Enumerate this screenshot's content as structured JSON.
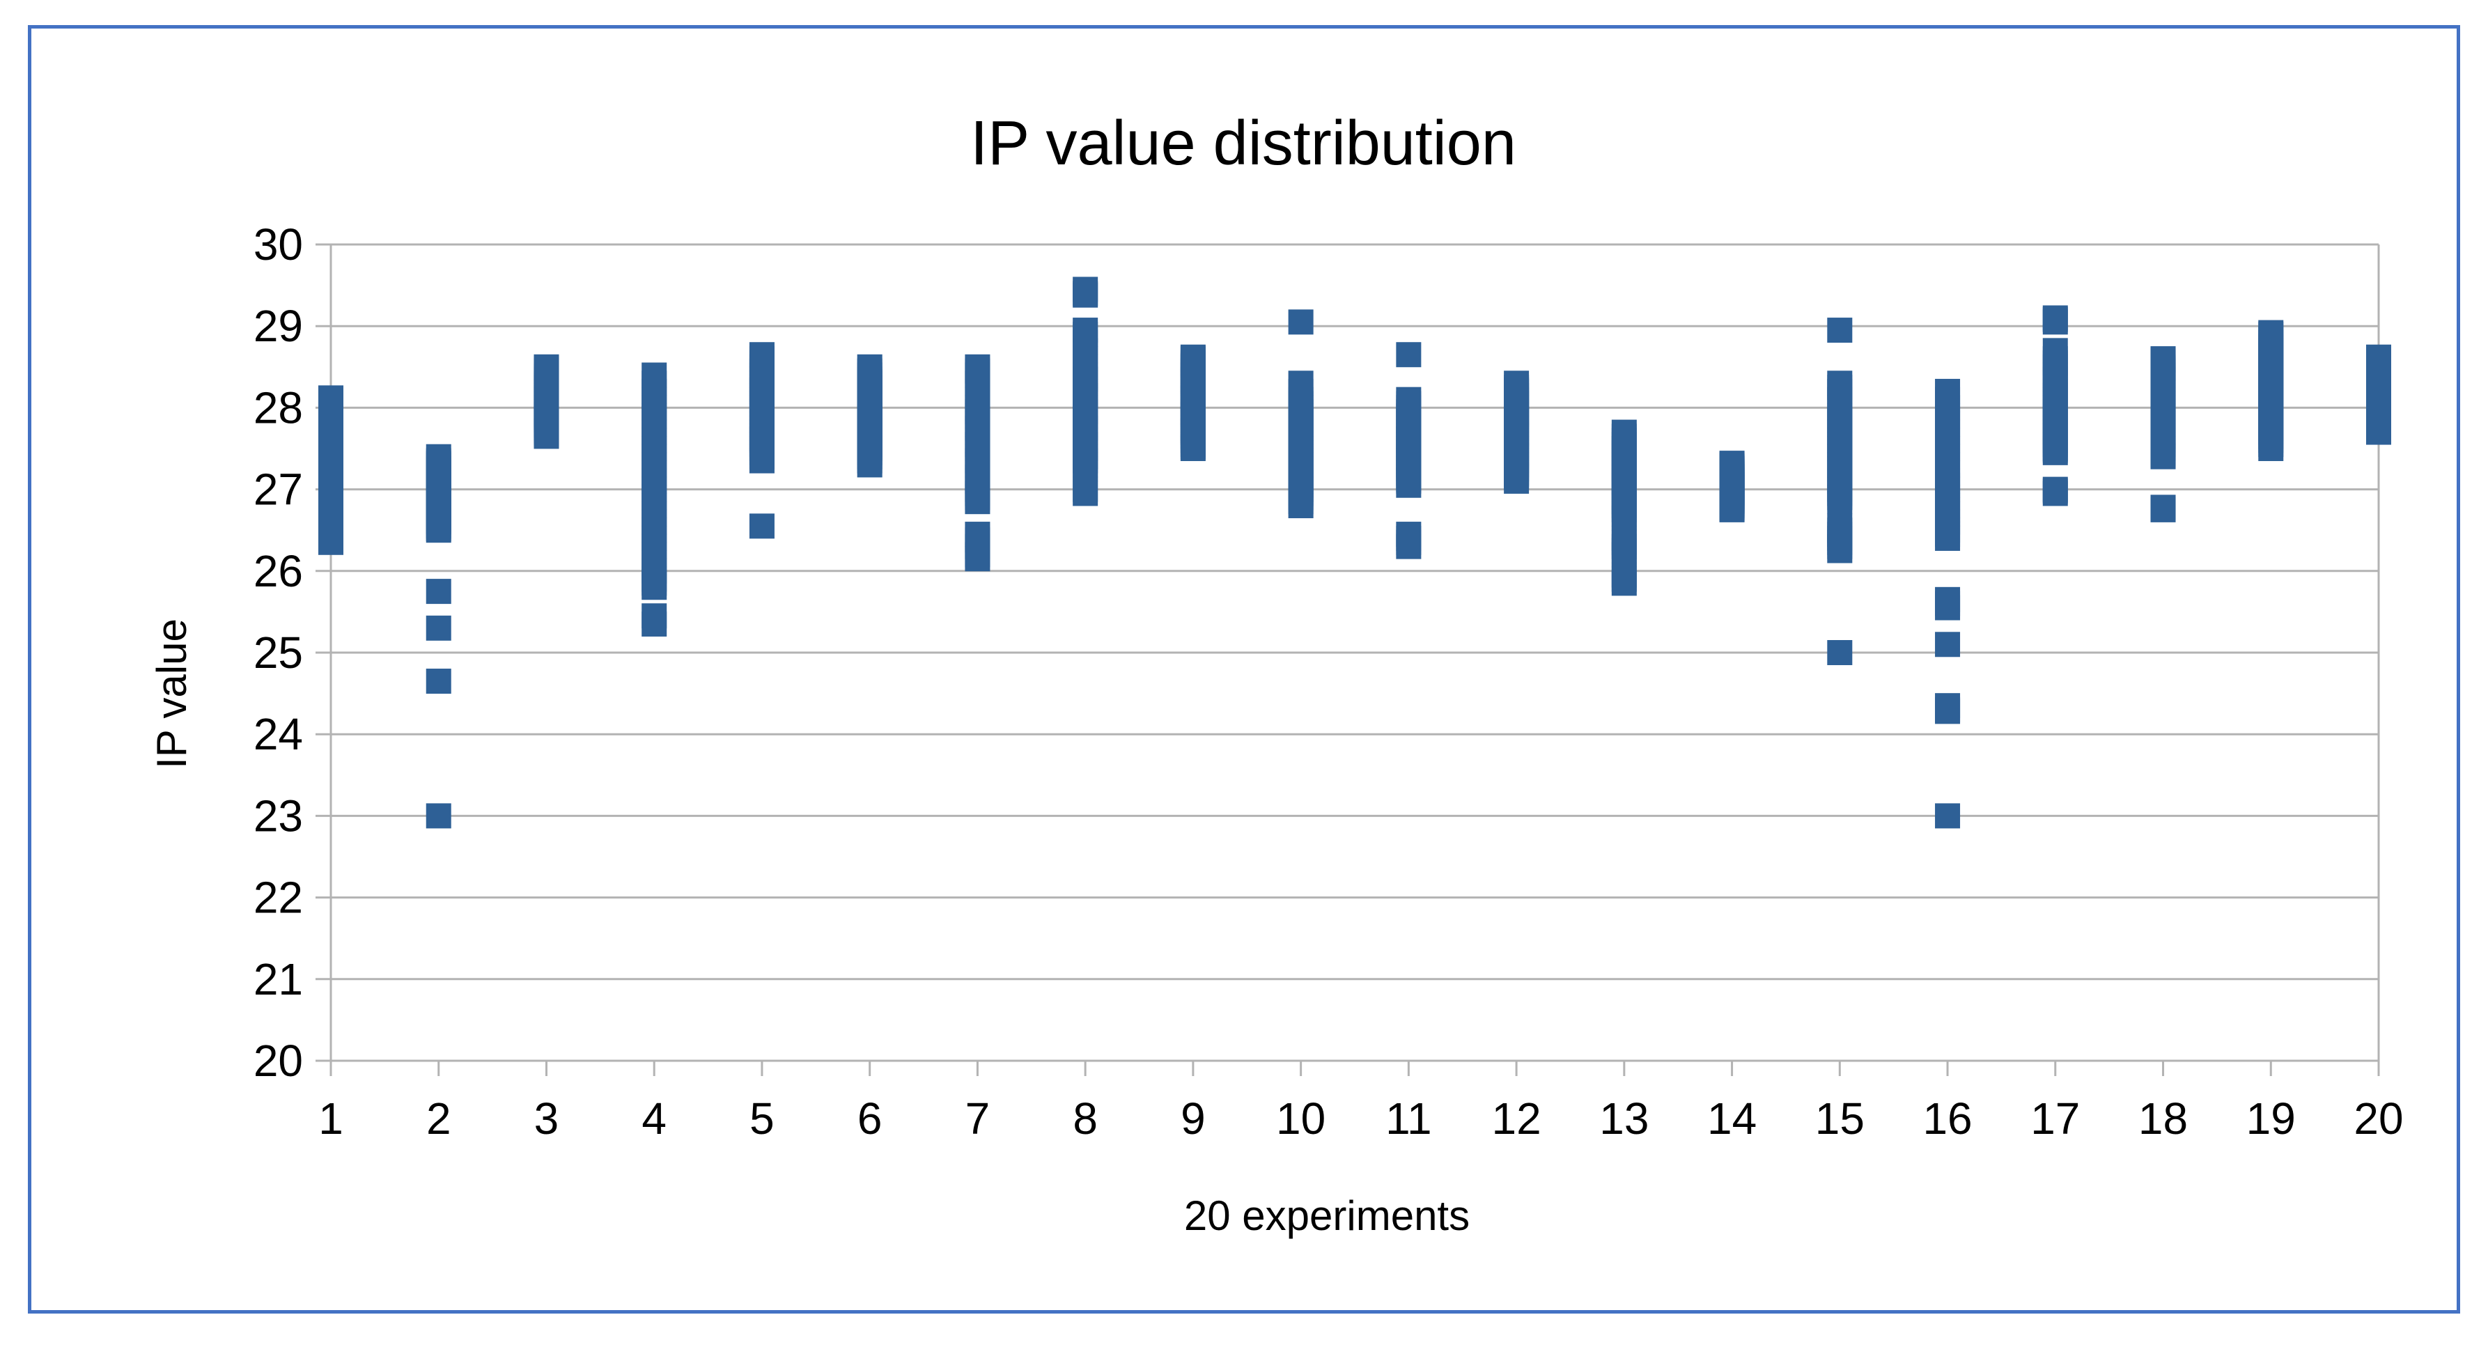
{
  "chart_data": {
    "type": "scatter",
    "title": "IP value distribution",
    "xlabel": "20 experiments",
    "ylabel": "IP value",
    "xlim": [
      1,
      20
    ],
    "ylim": [
      20,
      30
    ],
    "x_ticks": [
      "1",
      "2",
      "3",
      "4",
      "5",
      "6",
      "7",
      "8",
      "9",
      "10",
      "11",
      "12",
      "13",
      "14",
      "15",
      "16",
      "17",
      "18",
      "19",
      "20"
    ],
    "y_ticks": [
      "20",
      "21",
      "22",
      "23",
      "24",
      "25",
      "26",
      "27",
      "28",
      "29",
      "30"
    ],
    "grid": true,
    "legend": "none",
    "marker": "square",
    "color": "#2e6096",
    "series": [
      {
        "x": [
          1,
          1,
          1,
          1,
          1,
          1,
          1,
          1,
          1,
          1,
          1,
          1,
          1,
          1,
          1,
          1,
          1,
          1,
          1,
          1,
          1,
          1,
          1,
          1,
          1,
          1,
          1,
          1,
          1,
          1,
          1,
          1,
          1,
          1,
          1,
          1,
          1,
          1,
          1,
          1,
          2,
          2,
          2,
          2,
          2,
          2,
          2,
          2,
          2,
          2,
          2,
          2,
          2,
          2,
          2,
          2,
          2,
          2,
          2,
          2,
          2,
          2,
          2,
          2,
          2,
          2,
          2,
          2,
          2,
          2,
          3,
          3,
          3,
          3,
          3,
          3,
          3,
          3,
          3,
          3,
          3,
          3,
          3,
          3,
          3,
          3,
          3,
          3,
          3,
          3,
          3,
          3,
          3,
          3,
          3,
          3,
          3,
          3,
          3,
          3,
          4,
          4,
          4,
          4,
          4,
          4,
          4,
          4,
          4,
          4,
          4,
          4,
          4,
          4,
          4,
          4,
          4,
          4,
          4,
          4,
          4,
          4,
          4,
          4,
          4,
          4,
          4,
          4,
          4,
          4,
          5,
          5,
          5,
          5,
          5,
          5,
          5,
          5,
          5,
          5,
          5,
          5,
          5,
          5,
          5,
          5,
          5,
          5,
          5,
          5,
          5,
          5,
          5,
          5,
          5,
          5,
          5,
          5,
          5,
          5,
          6,
          6,
          6,
          6,
          6,
          6,
          6,
          6,
          6,
          6,
          6,
          6,
          6,
          6,
          6,
          6,
          6,
          6,
          6,
          6,
          6,
          6,
          6,
          6,
          6,
          6,
          6,
          6,
          6,
          6,
          7,
          7,
          7,
          7,
          7,
          7,
          7,
          7,
          7,
          7,
          7,
          7,
          7,
          7,
          7,
          7,
          7,
          7,
          7,
          7,
          7,
          7,
          7,
          7,
          7,
          7,
          7,
          7,
          7,
          7,
          8,
          8,
          8,
          8,
          8,
          8,
          8,
          8,
          8,
          8,
          8,
          8,
          8,
          8,
          8,
          8,
          8,
          8,
          8,
          8,
          8,
          8,
          8,
          8,
          8,
          8,
          8,
          8,
          8,
          8,
          9,
          9,
          9,
          9,
          9,
          9,
          9,
          9,
          9,
          9,
          9,
          9,
          9,
          9,
          9,
          9,
          9,
          9,
          9,
          9,
          9,
          9,
          9,
          9,
          9,
          9,
          9,
          9,
          9,
          9,
          10,
          10,
          10,
          10,
          10,
          10,
          10,
          10,
          10,
          10,
          10,
          10,
          10,
          10,
          10,
          10,
          10,
          10,
          10,
          10,
          10,
          10,
          10,
          10,
          10,
          10,
          10,
          10,
          10,
          10,
          11,
          11,
          11,
          11,
          11,
          11,
          11,
          11,
          11,
          11,
          11,
          11,
          11,
          11,
          11,
          11,
          11,
          11,
          11,
          11,
          11,
          11,
          11,
          11,
          11,
          11,
          11,
          11,
          11,
          11,
          12,
          12,
          12,
          12,
          12,
          12,
          12,
          12,
          12,
          12,
          12,
          12,
          12,
          12,
          12,
          12,
          12,
          12,
          12,
          12,
          12,
          12,
          12,
          12,
          12,
          12,
          12,
          12,
          12,
          12,
          13,
          13,
          13,
          13,
          13,
          13,
          13,
          13,
          13,
          13,
          13,
          13,
          13,
          13,
          13,
          13,
          13,
          13,
          13,
          13,
          13,
          13,
          13,
          13,
          13,
          13,
          13,
          13,
          13,
          13,
          14,
          14,
          14,
          14,
          14,
          14,
          14,
          14,
          14,
          14,
          14,
          14,
          14,
          14,
          14,
          14,
          14,
          14,
          14,
          14,
          14,
          14,
          14,
          14,
          14,
          14,
          14,
          14,
          14,
          14,
          15,
          15,
          15,
          15,
          15,
          15,
          15,
          15,
          15,
          15,
          15,
          15,
          15,
          15,
          15,
          15,
          15,
          15,
          15,
          15,
          15,
          15,
          15,
          15,
          15,
          15,
          15,
          15,
          15,
          15,
          16,
          16,
          16,
          16,
          16,
          16,
          16,
          16,
          16,
          16,
          16,
          16,
          16,
          16,
          16,
          16,
          16,
          16,
          16,
          16,
          16,
          16,
          16,
          16,
          16,
          16,
          16,
          16,
          16,
          16,
          17,
          17,
          17,
          17,
          17,
          17,
          17,
          17,
          17,
          17,
          17,
          17,
          17,
          17,
          17,
          17,
          17,
          17,
          17,
          17,
          17,
          17,
          17,
          17,
          17,
          17,
          17,
          17,
          17,
          17,
          18,
          18,
          18,
          18,
          18,
          18,
          18,
          18,
          18,
          18,
          18,
          18,
          18,
          18,
          18,
          18,
          18,
          18,
          18,
          18,
          18,
          18,
          18,
          18,
          18,
          18,
          18,
          18,
          18,
          18,
          19,
          19,
          19,
          19,
          19,
          19,
          19,
          19,
          19,
          19,
          19,
          19,
          19,
          19,
          19,
          19,
          19,
          19,
          19,
          19,
          19,
          19,
          19,
          19,
          19,
          19,
          19,
          19,
          19,
          19,
          20,
          20,
          20,
          20,
          20,
          20,
          20,
          20,
          20,
          20,
          20,
          20,
          20,
          20,
          20,
          20,
          20,
          20,
          20,
          20,
          20,
          20,
          20,
          20,
          20,
          20,
          20,
          20,
          20,
          20
        ],
        "y": [
          26.35,
          26.4,
          26.5,
          26.55,
          26.6,
          26.7,
          26.85,
          26.9,
          27.0,
          27.05,
          27.1,
          27.2,
          27.25,
          27.3,
          27.35,
          27.4,
          27.45,
          27.5,
          27.55,
          27.6,
          27.65,
          27.7,
          27.75,
          27.8,
          27.85,
          27.9,
          27.95,
          28.0,
          28.05,
          28.1,
          28.12,
          26.45,
          26.65,
          26.95,
          27.15,
          27.42,
          27.58,
          27.78,
          27.98,
          28.08,
          23.0,
          24.65,
          25.3,
          25.75,
          26.5,
          26.55,
          26.6,
          26.65,
          26.7,
          26.75,
          26.8,
          26.85,
          26.9,
          26.95,
          27.0,
          27.05,
          27.1,
          27.15,
          27.2,
          27.25,
          27.3,
          27.35,
          27.4,
          26.52,
          26.62,
          26.72,
          26.82,
          26.98,
          27.12,
          27.32,
          27.65,
          27.7,
          27.75,
          27.8,
          27.85,
          27.9,
          27.95,
          28.0,
          28.05,
          28.1,
          28.15,
          28.2,
          28.25,
          28.3,
          28.35,
          28.4,
          28.45,
          28.5,
          27.68,
          27.78,
          27.88,
          27.98,
          28.08,
          28.18,
          28.28,
          28.38,
          28.48,
          27.72,
          27.92,
          28.12,
          25.35,
          25.45,
          25.8,
          25.9,
          26.0,
          26.2,
          26.4,
          26.6,
          26.8,
          27.0,
          27.2,
          27.4,
          27.6,
          27.8,
          28.0,
          28.2,
          28.4,
          25.85,
          26.1,
          26.3,
          26.5,
          26.7,
          26.9,
          27.1,
          27.3,
          27.5,
          27.7,
          27.9,
          28.1,
          28.3,
          26.55,
          27.35,
          27.45,
          27.55,
          27.65,
          27.75,
          27.85,
          27.95,
          28.05,
          28.15,
          28.25,
          28.35,
          28.45,
          28.55,
          28.65,
          27.4,
          27.5,
          27.6,
          27.7,
          27.8,
          27.9,
          28.0,
          28.1,
          28.2,
          28.3,
          28.4,
          28.5,
          28.6,
          27.62,
          28.22,
          27.3,
          27.4,
          27.5,
          27.6,
          27.7,
          27.8,
          27.9,
          28.0,
          28.1,
          28.2,
          28.3,
          28.4,
          28.5,
          27.35,
          27.45,
          27.55,
          27.65,
          27.75,
          27.85,
          27.95,
          28.05,
          28.15,
          28.25,
          28.35,
          28.45,
          27.52,
          27.72,
          27.92,
          28.12,
          28.32,
          26.15,
          26.3,
          26.45,
          26.85,
          27.0,
          27.2,
          27.4,
          27.6,
          27.8,
          28.0,
          28.2,
          28.4,
          28.5,
          26.2,
          26.38,
          26.9,
          27.1,
          27.3,
          27.5,
          27.7,
          27.9,
          28.1,
          28.3,
          28.45,
          26.95,
          27.15,
          27.35,
          27.55,
          27.75,
          27.95,
          26.95,
          27.0,
          27.25,
          27.4,
          27.6,
          27.8,
          28.0,
          28.2,
          28.4,
          28.6,
          28.8,
          28.95,
          29.4,
          29.45,
          27.3,
          27.5,
          27.7,
          27.9,
          28.1,
          28.3,
          28.5,
          28.7,
          28.9,
          29.38,
          27.35,
          27.55,
          27.75,
          27.95,
          28.15,
          28.35,
          27.5,
          27.6,
          27.7,
          27.8,
          27.9,
          28.0,
          28.1,
          28.2,
          28.3,
          28.4,
          28.5,
          28.6,
          27.55,
          27.65,
          27.75,
          27.85,
          27.95,
          28.05,
          28.15,
          28.25,
          28.35,
          28.45,
          28.55,
          28.62,
          27.52,
          27.72,
          27.92,
          28.12,
          28.32,
          28.52,
          26.8,
          26.9,
          27.0,
          27.1,
          27.2,
          27.3,
          27.4,
          27.5,
          27.6,
          27.7,
          27.8,
          27.9,
          28.0,
          28.1,
          28.2,
          28.3,
          29.05,
          26.85,
          26.95,
          27.05,
          27.15,
          27.25,
          27.35,
          27.45,
          27.55,
          27.65,
          27.75,
          27.85,
          27.95,
          28.05,
          26.3,
          26.4,
          26.45,
          27.05,
          27.15,
          27.25,
          27.35,
          27.45,
          27.55,
          27.65,
          27.75,
          27.85,
          27.95,
          28.05,
          28.1,
          28.65,
          26.35,
          27.1,
          27.2,
          27.3,
          27.4,
          27.5,
          27.6,
          27.7,
          27.8,
          27.9,
          28.0,
          27.12,
          27.38,
          27.62,
          27.1,
          27.2,
          27.3,
          27.4,
          27.5,
          27.6,
          27.7,
          27.8,
          27.9,
          28.0,
          28.1,
          28.2,
          28.3,
          27.15,
          27.25,
          27.35,
          27.45,
          27.55,
          27.65,
          27.75,
          27.85,
          27.95,
          28.05,
          28.15,
          28.25,
          27.18,
          27.42,
          27.68,
          27.92,
          28.22,
          25.85,
          25.95,
          26.2,
          26.3,
          26.4,
          26.65,
          26.75,
          26.85,
          27.0,
          27.1,
          27.2,
          27.3,
          27.4,
          27.5,
          27.6,
          27.7,
          25.9,
          26.25,
          26.35,
          26.7,
          26.8,
          27.05,
          27.15,
          27.25,
          27.35,
          27.45,
          27.55,
          27.65,
          26.9,
          27.08,
          26.75,
          26.8,
          26.85,
          26.9,
          26.95,
          27.0,
          27.05,
          27.1,
          27.15,
          27.2,
          27.25,
          27.3,
          26.78,
          26.82,
          26.88,
          26.92,
          26.98,
          27.02,
          27.08,
          27.12,
          27.18,
          27.22,
          27.28,
          26.76,
          26.86,
          26.96,
          27.06,
          27.16,
          27.26,
          27.32,
          25.0,
          26.25,
          26.35,
          26.45,
          26.55,
          26.85,
          27.0,
          27.2,
          27.4,
          27.6,
          27.8,
          28.0,
          28.2,
          28.3,
          28.95,
          26.3,
          26.4,
          26.5,
          26.9,
          27.1,
          27.3,
          27.5,
          27.7,
          27.9,
          28.1,
          28.25,
          26.95,
          27.25,
          27.55,
          27.85,
          23.0,
          24.3,
          24.35,
          25.1,
          25.55,
          25.65,
          26.4,
          26.6,
          26.8,
          27.0,
          27.2,
          27.4,
          27.6,
          27.8,
          28.0,
          28.2,
          24.28,
          25.6,
          26.5,
          26.7,
          26.9,
          27.1,
          27.3,
          27.5,
          27.7,
          27.9,
          28.1,
          26.45,
          26.75,
          27.05,
          26.95,
          27.0,
          27.45,
          27.6,
          27.8,
          28.0,
          28.2,
          28.4,
          28.6,
          29.05,
          29.1,
          27.5,
          27.7,
          27.9,
          28.1,
          28.3,
          28.5,
          28.7,
          27.55,
          27.75,
          27.95,
          28.15,
          28.35,
          28.55,
          29.08,
          26.98,
          27.48,
          27.65,
          27.85,
          28.05,
          26.75,
          27.4,
          27.55,
          27.7,
          27.85,
          28.0,
          28.15,
          28.3,
          28.45,
          28.6,
          27.45,
          27.6,
          27.75,
          27.9,
          28.05,
          28.2,
          28.35,
          28.5,
          28.58,
          27.5,
          27.65,
          27.8,
          27.95,
          28.1,
          28.25,
          28.4,
          28.55,
          26.78,
          27.42,
          28.48,
          27.5,
          27.6,
          27.7,
          27.8,
          27.9,
          28.0,
          28.1,
          28.2,
          28.3,
          28.4,
          28.5,
          28.6,
          28.7,
          28.8,
          28.9,
          27.55,
          27.65,
          27.75,
          27.85,
          27.95,
          28.05,
          28.15,
          28.25,
          28.35,
          28.45,
          28.55,
          28.65,
          28.75,
          28.85,
          28.92,
          27.7,
          27.8,
          27.9,
          28.0,
          28.1,
          28.2,
          28.3,
          28.4,
          28.5,
          28.6,
          27.75,
          27.85,
          27.95,
          28.05,
          28.15,
          28.25,
          28.35,
          28.45,
          28.55,
          28.62,
          27.72,
          27.82,
          27.92,
          28.02,
          28.12,
          28.22,
          28.32,
          28.42,
          28.52,
          27.78
        ]
      }
    ]
  }
}
